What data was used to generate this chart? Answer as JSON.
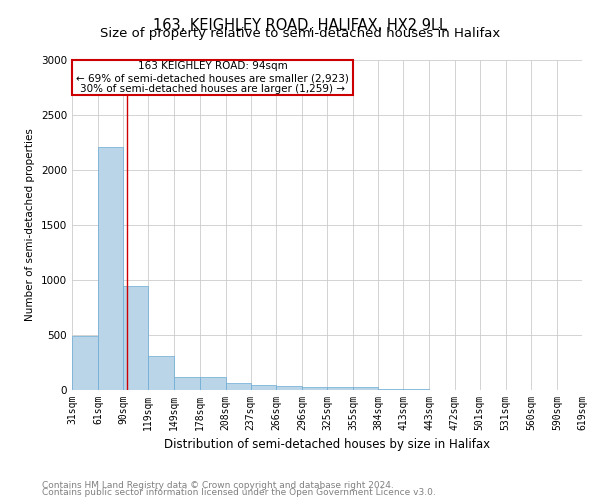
{
  "title": "163, KEIGHLEY ROAD, HALIFAX, HX2 9LL",
  "subtitle": "Size of property relative to semi-detached houses in Halifax",
  "xlabel": "Distribution of semi-detached houses by size in Halifax",
  "ylabel": "Number of semi-detached properties",
  "footnote1": "Contains HM Land Registry data © Crown copyright and database right 2024.",
  "footnote2": "Contains public sector information licensed under the Open Government Licence v3.0.",
  "annotation_line1": "163 KEIGHLEY ROAD: 94sqm",
  "annotation_line2": "← 69% of semi-detached houses are smaller (2,923)",
  "annotation_line3": "30% of semi-detached houses are larger (1,259) →",
  "property_size": 94,
  "bin_edges": [
    31,
    61,
    90,
    119,
    149,
    178,
    208,
    237,
    266,
    296,
    325,
    355,
    384,
    413,
    443,
    472,
    501,
    531,
    560,
    590,
    619
  ],
  "bar_values": [
    490,
    2210,
    950,
    305,
    122,
    115,
    65,
    45,
    32,
    28,
    28,
    25,
    5,
    5,
    4,
    2,
    2,
    1,
    1,
    1
  ],
  "bar_color": "#bad4e8",
  "bar_edge_color": "#6aaad4",
  "vline_color": "#cc0000",
  "vline_x": 94,
  "ylim": [
    0,
    3000
  ],
  "yticks": [
    0,
    500,
    1000,
    1500,
    2000,
    2500,
    3000
  ],
  "background_color": "#ffffff",
  "grid_color": "#cccccc",
  "title_fontsize": 10.5,
  "subtitle_fontsize": 9.5,
  "axis_label_fontsize": 8.5,
  "ylabel_fontsize": 7.5,
  "tick_fontsize": 7,
  "footnote_fontsize": 6.5,
  "annotation_fontsize": 7.5
}
